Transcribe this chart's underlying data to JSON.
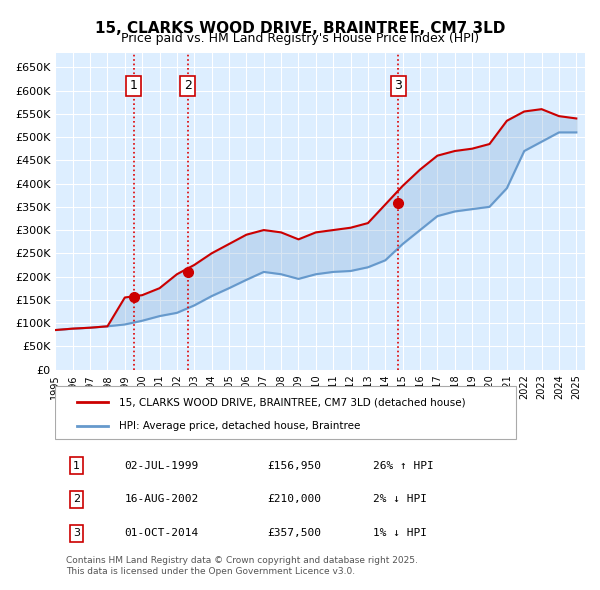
{
  "title": "15, CLARKS WOOD DRIVE, BRAINTREE, CM7 3LD",
  "subtitle": "Price paid vs. HM Land Registry's House Price Index (HPI)",
  "ylabel_ticks": [
    "£0",
    "£50K",
    "£100K",
    "£150K",
    "£200K",
    "£250K",
    "£300K",
    "£350K",
    "£400K",
    "£450K",
    "£500K",
    "£550K",
    "£600K",
    "£650K"
  ],
  "ytick_values": [
    0,
    50000,
    100000,
    150000,
    200000,
    250000,
    300000,
    350000,
    400000,
    450000,
    500000,
    550000,
    600000,
    650000
  ],
  "xlim": [
    1995.0,
    2025.5
  ],
  "ylim": [
    0,
    680000
  ],
  "sale_dates": [
    1999.5,
    2002.62,
    2014.75
  ],
  "sale_prices": [
    156950,
    210000,
    357500
  ],
  "marker_labels": [
    "1",
    "2",
    "3"
  ],
  "vline_color": "#dd0000",
  "vline_style": ":",
  "marker_box_color": "#cc0000",
  "hpi_color": "#6699cc",
  "price_color": "#cc0000",
  "legend_line1": "15, CLARKS WOOD DRIVE, BRAINTREE, CM7 3LD (detached house)",
  "legend_line2": "HPI: Average price, detached house, Braintree",
  "table_rows": [
    [
      "1",
      "02-JUL-1999",
      "£156,950",
      "26% ↑ HPI"
    ],
    [
      "2",
      "16-AUG-2002",
      "£210,000",
      "2% ↓ HPI"
    ],
    [
      "3",
      "01-OCT-2014",
      "£357,500",
      "1% ↓ HPI"
    ]
  ],
  "footer": "Contains HM Land Registry data © Crown copyright and database right 2025.\nThis data is licensed under the Open Government Licence v3.0.",
  "bg_chart": "#ddeeff",
  "bg_figure": "#ffffff",
  "grid_color": "#ffffff",
  "years": [
    1995,
    1996,
    1997,
    1998,
    1999,
    2000,
    2001,
    2002,
    2003,
    2004,
    2005,
    2006,
    2007,
    2008,
    2009,
    2010,
    2011,
    2012,
    2013,
    2014,
    2015,
    2016,
    2017,
    2018,
    2019,
    2020,
    2021,
    2022,
    2023,
    2024,
    2025
  ],
  "hpi_values": [
    85000,
    88000,
    90000,
    93000,
    97000,
    105000,
    115000,
    122000,
    138000,
    158000,
    175000,
    193000,
    210000,
    205000,
    195000,
    205000,
    210000,
    212000,
    220000,
    235000,
    270000,
    300000,
    330000,
    340000,
    345000,
    350000,
    390000,
    470000,
    490000,
    510000,
    510000
  ],
  "price_hpi_values": [
    85000,
    88000,
    90000,
    93000,
    155000,
    160000,
    175000,
    205000,
    225000,
    250000,
    270000,
    290000,
    300000,
    295000,
    280000,
    295000,
    300000,
    305000,
    315000,
    355000,
    395000,
    430000,
    460000,
    470000,
    475000,
    485000,
    535000,
    555000,
    560000,
    545000,
    540000
  ]
}
